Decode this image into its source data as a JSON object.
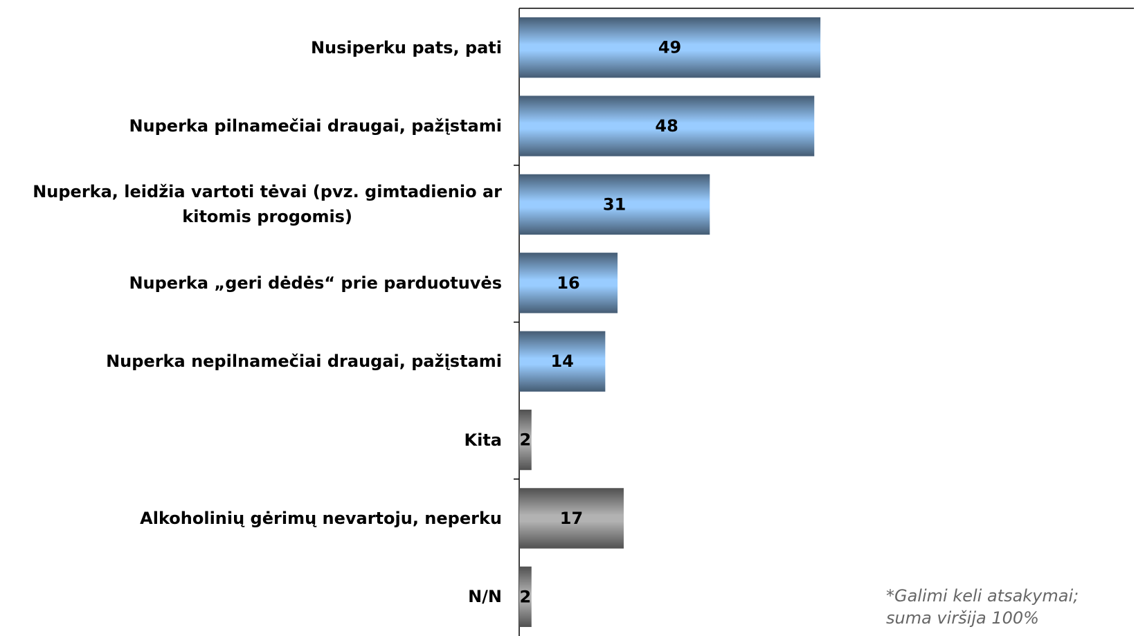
{
  "chart_data": {
    "type": "bar",
    "orientation": "horizontal",
    "categories": [
      "Nusiperku pats, pati",
      "Nuperka pilnamečiai draugai, pažįstami",
      "Nuperka, leidžia vartoti tėvai (pvz. gimtadienio ar\nkitomis progomis)",
      "Nuperka „geri dėdės“ prie parduotuvės",
      "Nuperka nepilnamečiai draugai, pažįstami",
      "Kita",
      "Alkoholinių gėrimų nevartoju, neperku",
      "N/N"
    ],
    "values": [
      49,
      48,
      31,
      16,
      14,
      2,
      17,
      2
    ],
    "colors": [
      "#99ccff",
      "#99ccff",
      "#99ccff",
      "#99ccff",
      "#99ccff",
      "#b2b2b2",
      "#b2b2b2",
      "#b2b2b2"
    ],
    "xlim": [
      0,
      100
    ],
    "note": "*Galimi keli atsakymai; suma viršija 100%"
  }
}
